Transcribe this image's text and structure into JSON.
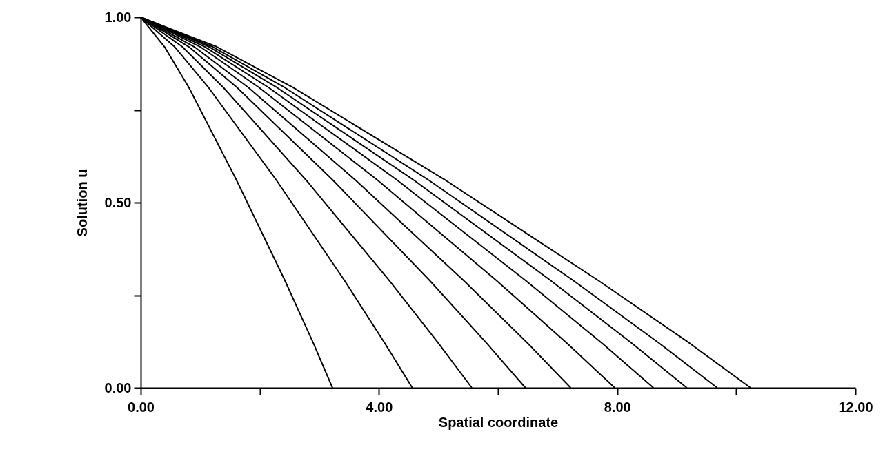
{
  "chart_data": {
    "type": "line",
    "xlabel": "Spatial coordinate",
    "ylabel": "Solution u",
    "xlim": [
      0,
      12
    ],
    "ylim": [
      0,
      1
    ],
    "xticks": [
      {
        "value": 0,
        "label": "0.00"
      },
      {
        "value": 2,
        "label": null
      },
      {
        "value": 4,
        "label": "4.00"
      },
      {
        "value": 6,
        "label": null
      },
      {
        "value": 8,
        "label": "8.00"
      },
      {
        "value": 10,
        "label": null
      },
      {
        "value": 12,
        "label": "12.00"
      }
    ],
    "yticks": [
      {
        "value": 0,
        "label": "0.00"
      },
      {
        "value": 0.25,
        "label": null
      },
      {
        "value": 0.5,
        "label": "0.50"
      },
      {
        "value": 0.75,
        "label": null
      },
      {
        "value": 1,
        "label": "1.00"
      }
    ],
    "grid": false,
    "series": [
      {
        "color": "#000000",
        "x": [
          0,
          0.4,
          0.81,
          1.61,
          2.42,
          2.9,
          3.22
        ],
        "values": [
          1,
          0.92,
          0.81,
          0.56,
          0.29,
          0.12,
          0
        ]
      },
      {
        "color": "#000000",
        "x": [
          0,
          0.57,
          1.14,
          2.28,
          3.42,
          4.1,
          4.56
        ],
        "values": [
          1,
          0.92,
          0.81,
          0.56,
          0.29,
          0.12,
          0
        ]
      },
      {
        "color": "#000000",
        "x": [
          0,
          0.7,
          1.39,
          2.78,
          4.17,
          5.0,
          5.56
        ],
        "values": [
          1,
          0.92,
          0.81,
          0.56,
          0.29,
          0.12,
          0
        ]
      },
      {
        "color": "#000000",
        "x": [
          0,
          0.81,
          1.62,
          3.23,
          4.85,
          5.81,
          6.46
        ],
        "values": [
          1,
          0.92,
          0.81,
          0.56,
          0.29,
          0.12,
          0
        ]
      },
      {
        "color": "#000000",
        "x": [
          0,
          0.9,
          1.81,
          3.61,
          5.42,
          6.5,
          7.22
        ],
        "values": [
          1,
          0.92,
          0.81,
          0.56,
          0.29,
          0.12,
          0
        ]
      },
      {
        "color": "#000000",
        "x": [
          0,
          1.0,
          1.99,
          3.98,
          5.97,
          7.16,
          7.96
        ],
        "values": [
          1,
          0.92,
          0.81,
          0.56,
          0.29,
          0.12,
          0
        ]
      },
      {
        "color": "#000000",
        "x": [
          0,
          1.08,
          2.15,
          4.31,
          6.46,
          7.75,
          8.61
        ],
        "values": [
          1,
          0.92,
          0.81,
          0.56,
          0.29,
          0.12,
          0
        ]
      },
      {
        "color": "#000000",
        "x": [
          0,
          1.15,
          2.29,
          4.59,
          6.88,
          8.25,
          9.17
        ],
        "values": [
          1,
          0.92,
          0.81,
          0.56,
          0.29,
          0.12,
          0
        ]
      },
      {
        "color": "#000000",
        "x": [
          0,
          1.21,
          2.42,
          4.84,
          7.26,
          8.71,
          9.68
        ],
        "values": [
          1,
          0.92,
          0.81,
          0.56,
          0.29,
          0.12,
          0
        ]
      },
      {
        "color": "#000000",
        "x": [
          0,
          1.28,
          2.56,
          5.12,
          7.68,
          9.22,
          10.24
        ],
        "values": [
          1,
          0.92,
          0.81,
          0.56,
          0.29,
          0.12,
          0
        ]
      }
    ]
  }
}
